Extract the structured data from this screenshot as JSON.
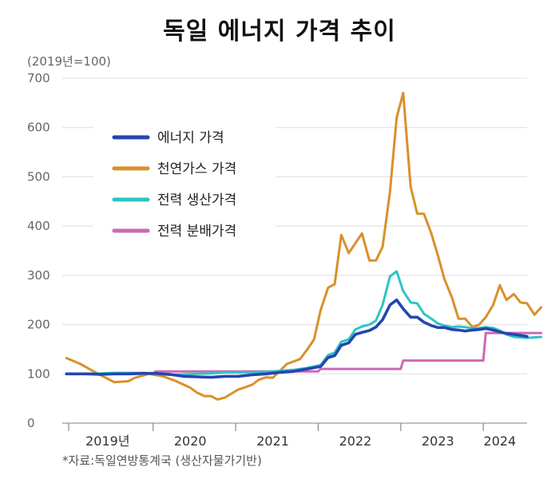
{
  "title": "독일 에너지 가격 추이",
  "unit_note": "(2019년=100)",
  "source_note": "*자료:독일연방통계국 (생산자물가기반)",
  "chart_data": {
    "type": "line",
    "ylim": [
      0,
      700
    ],
    "yticks": [
      0,
      100,
      200,
      300,
      400,
      500,
      600,
      700
    ],
    "xlim": [
      2018.7,
      2024.33
    ],
    "xticks": [
      {
        "label": "2019년",
        "at": 2019.25
      },
      {
        "label": "2020",
        "at": 2020.25
      },
      {
        "label": "2021",
        "at": 2021.25
      },
      {
        "label": "2022",
        "at": 2022.25
      },
      {
        "label": "2023",
        "at": 2023.25
      },
      {
        "label": "2024",
        "at": 2024.0
      }
    ],
    "year_separators": [
      2019.8,
      2020.8,
      2021.8,
      2022.8,
      2023.8
    ],
    "grid": true,
    "legend_position": "top-left",
    "series": [
      {
        "name": "에너지 가격",
        "color": "#2445b0",
        "points": [
          [
            2018.75,
            100
          ],
          [
            2019.0,
            100
          ],
          [
            2019.17,
            99
          ],
          [
            2019.33,
            100
          ],
          [
            2019.5,
            100
          ],
          [
            2019.67,
            101
          ],
          [
            2019.83,
            101
          ],
          [
            2020.0,
            99
          ],
          [
            2020.17,
            95
          ],
          [
            2020.33,
            94
          ],
          [
            2020.5,
            93
          ],
          [
            2020.67,
            95
          ],
          [
            2020.83,
            95
          ],
          [
            2021.0,
            98
          ],
          [
            2021.17,
            100
          ],
          [
            2021.33,
            103
          ],
          [
            2021.5,
            105
          ],
          [
            2021.67,
            110
          ],
          [
            2021.83,
            115
          ],
          [
            2021.92,
            133
          ],
          [
            2022.0,
            137
          ],
          [
            2022.08,
            158
          ],
          [
            2022.17,
            163
          ],
          [
            2022.25,
            180
          ],
          [
            2022.33,
            184
          ],
          [
            2022.42,
            188
          ],
          [
            2022.5,
            195
          ],
          [
            2022.58,
            210
          ],
          [
            2022.67,
            240
          ],
          [
            2022.75,
            250
          ],
          [
            2022.83,
            232
          ],
          [
            2022.92,
            215
          ],
          [
            2023.0,
            215
          ],
          [
            2023.08,
            205
          ],
          [
            2023.17,
            198
          ],
          [
            2023.25,
            194
          ],
          [
            2023.33,
            194
          ],
          [
            2023.42,
            190
          ],
          [
            2023.5,
            189
          ],
          [
            2023.58,
            187
          ],
          [
            2023.67,
            189
          ],
          [
            2023.75,
            190
          ],
          [
            2023.83,
            192
          ],
          [
            2023.92,
            189
          ],
          [
            2024.0,
            185
          ],
          [
            2024.08,
            182
          ],
          [
            2024.17,
            180
          ],
          [
            2024.25,
            178
          ],
          [
            2024.33,
            176
          ]
        ]
      },
      {
        "name": "천연가스 가격",
        "color": "#d9902a",
        "points": [
          [
            2018.75,
            132
          ],
          [
            2018.92,
            120
          ],
          [
            2019.08,
            105
          ],
          [
            2019.25,
            90
          ],
          [
            2019.33,
            83
          ],
          [
            2019.5,
            85
          ],
          [
            2019.58,
            92
          ],
          [
            2019.75,
            100
          ],
          [
            2019.92,
            95
          ],
          [
            2020.08,
            85
          ],
          [
            2020.25,
            72
          ],
          [
            2020.33,
            62
          ],
          [
            2020.42,
            55
          ],
          [
            2020.5,
            55
          ],
          [
            2020.58,
            48
          ],
          [
            2020.67,
            52
          ],
          [
            2020.75,
            60
          ],
          [
            2020.83,
            68
          ],
          [
            2020.92,
            73
          ],
          [
            2021.0,
            78
          ],
          [
            2021.08,
            88
          ],
          [
            2021.17,
            93
          ],
          [
            2021.25,
            92
          ],
          [
            2021.33,
            105
          ],
          [
            2021.42,
            120
          ],
          [
            2021.58,
            130
          ],
          [
            2021.67,
            150
          ],
          [
            2021.75,
            170
          ],
          [
            2021.83,
            230
          ],
          [
            2021.92,
            275
          ],
          [
            2022.0,
            282
          ],
          [
            2022.08,
            382
          ],
          [
            2022.17,
            345
          ],
          [
            2022.25,
            365
          ],
          [
            2022.33,
            385
          ],
          [
            2022.42,
            330
          ],
          [
            2022.5,
            330
          ],
          [
            2022.58,
            358
          ],
          [
            2022.67,
            470
          ],
          [
            2022.75,
            620
          ],
          [
            2022.83,
            670
          ],
          [
            2022.92,
            480
          ],
          [
            2023.0,
            425
          ],
          [
            2023.08,
            425
          ],
          [
            2023.17,
            385
          ],
          [
            2023.25,
            340
          ],
          [
            2023.33,
            292
          ],
          [
            2023.42,
            255
          ],
          [
            2023.5,
            212
          ],
          [
            2023.58,
            212
          ],
          [
            2023.67,
            195
          ],
          [
            2023.75,
            200
          ],
          [
            2023.83,
            215
          ],
          [
            2023.92,
            240
          ],
          [
            2024.0,
            280
          ],
          [
            2024.08,
            250
          ],
          [
            2024.17,
            262
          ],
          [
            2024.25,
            245
          ],
          [
            2024.33,
            243
          ],
          [
            2024.42,
            220
          ],
          [
            2024.5,
            235
          ]
        ]
      },
      {
        "name": "전력 생산가격",
        "color": "#2ec4c4",
        "points": [
          [
            2018.75,
            100
          ],
          [
            2019.0,
            100
          ],
          [
            2019.17,
            101
          ],
          [
            2019.33,
            102
          ],
          [
            2019.5,
            102
          ],
          [
            2019.67,
            102
          ],
          [
            2019.83,
            101
          ],
          [
            2020.0,
            98
          ],
          [
            2020.17,
            99
          ],
          [
            2020.33,
            100
          ],
          [
            2020.5,
            101
          ],
          [
            2020.67,
            103
          ],
          [
            2020.83,
            103
          ],
          [
            2021.0,
            103
          ],
          [
            2021.17,
            104
          ],
          [
            2021.33,
            106
          ],
          [
            2021.5,
            108
          ],
          [
            2021.67,
            112
          ],
          [
            2021.83,
            118
          ],
          [
            2021.92,
            138
          ],
          [
            2022.0,
            143
          ],
          [
            2022.08,
            165
          ],
          [
            2022.17,
            170
          ],
          [
            2022.25,
            190
          ],
          [
            2022.33,
            196
          ],
          [
            2022.42,
            200
          ],
          [
            2022.5,
            208
          ],
          [
            2022.58,
            240
          ],
          [
            2022.67,
            298
          ],
          [
            2022.75,
            308
          ],
          [
            2022.83,
            268
          ],
          [
            2022.92,
            245
          ],
          [
            2023.0,
            243
          ],
          [
            2023.08,
            222
          ],
          [
            2023.17,
            212
          ],
          [
            2023.25,
            202
          ],
          [
            2023.33,
            198
          ],
          [
            2023.42,
            195
          ],
          [
            2023.5,
            196
          ],
          [
            2023.58,
            195
          ],
          [
            2023.67,
            192
          ],
          [
            2023.75,
            193
          ],
          [
            2023.83,
            195
          ],
          [
            2023.92,
            193
          ],
          [
            2024.0,
            188
          ],
          [
            2024.08,
            180
          ],
          [
            2024.17,
            175
          ],
          [
            2024.25,
            174
          ],
          [
            2024.33,
            173
          ],
          [
            2024.42,
            174
          ],
          [
            2024.5,
            175
          ]
        ]
      },
      {
        "name": "전력 분배가격",
        "color": "#c96bb4",
        "points": [
          [
            2018.75,
            100
          ],
          [
            2019.5,
            100
          ],
          [
            2019.8,
            100
          ],
          [
            2019.83,
            105
          ],
          [
            2020.5,
            105
          ],
          [
            2020.8,
            105
          ],
          [
            2021.5,
            105
          ],
          [
            2021.8,
            105
          ],
          [
            2021.83,
            110
          ],
          [
            2022.5,
            110
          ],
          [
            2022.8,
            110
          ],
          [
            2022.83,
            127
          ],
          [
            2023.5,
            127
          ],
          [
            2023.75,
            127
          ],
          [
            2023.8,
            127
          ],
          [
            2023.83,
            183
          ],
          [
            2024.25,
            183
          ],
          [
            2024.5,
            183
          ]
        ]
      }
    ]
  }
}
